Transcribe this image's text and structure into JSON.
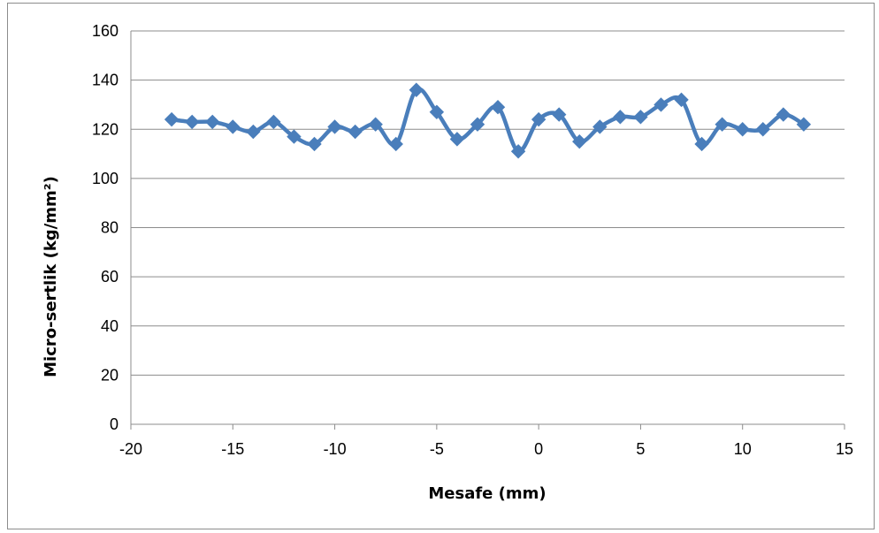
{
  "chart_data": {
    "type": "line",
    "title": "",
    "xlabel": "Mesafe (mm)",
    "ylabel": "Micro-sertlik (kg/mm²)",
    "xlim": [
      -20,
      15
    ],
    "ylim": [
      0,
      160
    ],
    "xticks": [
      -20,
      -15,
      -10,
      -5,
      0,
      5,
      10,
      15
    ],
    "yticks": [
      0,
      20,
      40,
      60,
      80,
      100,
      120,
      140,
      160
    ],
    "grid": "horizontal",
    "legend": "none",
    "marker": "diamond",
    "smooth": true,
    "color": "#4a7ebb",
    "series": [
      {
        "x": [
          -18,
          -17,
          -16,
          -15,
          -14,
          -13,
          -12,
          -11,
          -10,
          -9,
          -8,
          -7,
          -6,
          -5,
          -4,
          -3,
          -2,
          -1,
          0,
          1,
          2,
          3,
          4,
          5,
          6,
          7,
          8,
          9,
          10,
          11,
          12,
          13
        ],
        "values": [
          124,
          123,
          123,
          121,
          119,
          123,
          117,
          114,
          121,
          119,
          122,
          114,
          136,
          127,
          116,
          122,
          129,
          111,
          124,
          126,
          115,
          121,
          125,
          125,
          130,
          132,
          114,
          122,
          120,
          120,
          126,
          122
        ]
      }
    ]
  }
}
